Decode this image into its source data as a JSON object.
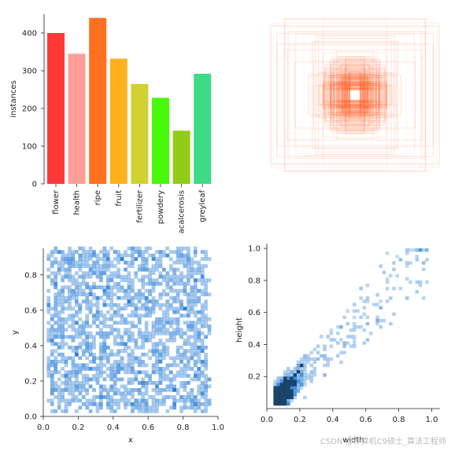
{
  "watermark": "CSDN @计算机C9硕士_算法工程师",
  "chart_data": [
    {
      "type": "bar",
      "categories": [
        "flower",
        "health",
        "ripe",
        "fruit",
        "fertilizer",
        "powdery",
        "acalcerosis",
        "greyleaf"
      ],
      "values": [
        400,
        345,
        440,
        332,
        265,
        228,
        141,
        292
      ],
      "colors": [
        "#ff3838",
        "#ff9d97",
        "#ff701f",
        "#ffb21d",
        "#cfd231",
        "#48f90a",
        "#92cc17",
        "#3ddb86"
      ],
      "ylabel": "instances",
      "ylim": [
        0,
        450
      ],
      "yticks": [
        0,
        100,
        200,
        300,
        400
      ],
      "grid": false
    },
    {
      "type": "scatter",
      "description_kind": "box overlay",
      "xlabel": "",
      "ylabel": "",
      "stroke_color": "#ff5a1f",
      "center_fill": "#ffffff",
      "axes": "off"
    },
    {
      "type": "heatmap",
      "xlabel": "x",
      "ylabel": "y",
      "xlim": [
        0.0,
        1.0
      ],
      "ylim": [
        0.0,
        0.95
      ],
      "xticks": [
        0.0,
        0.2,
        0.4,
        0.6,
        0.8,
        1.0
      ],
      "yticks": [
        0.0,
        0.2,
        0.4,
        0.6,
        0.8
      ],
      "x_range": [
        0.03,
        0.95
      ],
      "y_range": [
        0.03,
        0.95
      ],
      "color": "#1f77d4",
      "bins": 50
    },
    {
      "type": "heatmap",
      "xlabel": "width",
      "ylabel": "height",
      "xlim": [
        0.0,
        1.05
      ],
      "ylim": [
        0.0,
        1.03
      ],
      "xticks": [
        0.0,
        0.2,
        0.4,
        0.6,
        0.8,
        1.0
      ],
      "yticks": [
        0.2,
        0.4,
        0.6,
        0.8,
        1.0
      ],
      "color": "#1f77d4",
      "bins": 50
    }
  ]
}
